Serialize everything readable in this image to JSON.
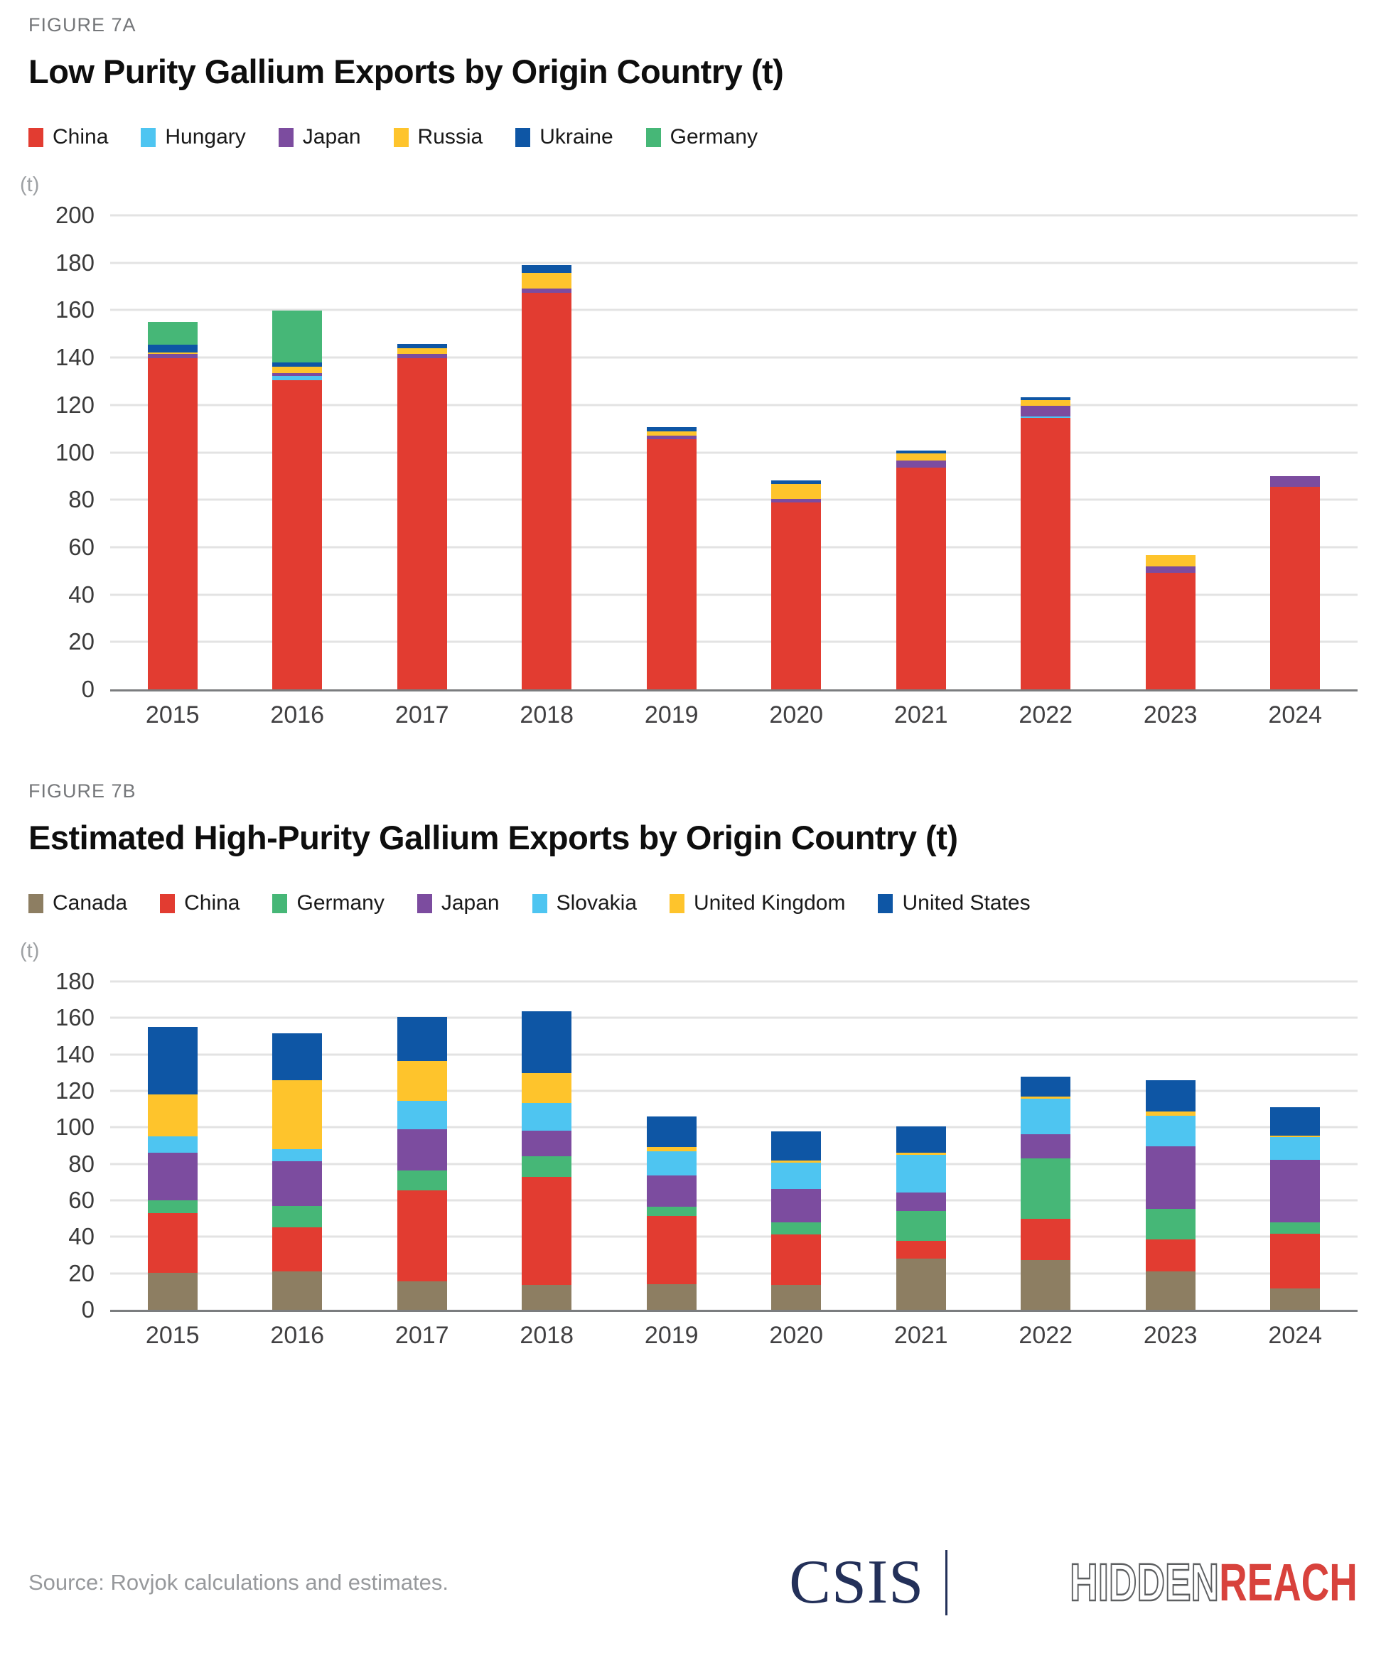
{
  "chart_data": [
    {
      "type": "bar",
      "stacked": true,
      "figure_label": "FIGURE 7A",
      "title": "Low Purity Gallium Exports by Origin Country (t)",
      "unit": "(t)",
      "grid": true,
      "legend_position": "top",
      "ylim": [
        0,
        200
      ],
      "ytick": 20,
      "categories": [
        "2015",
        "2016",
        "2017",
        "2018",
        "2019",
        "2020",
        "2021",
        "2022",
        "2023",
        "2024"
      ],
      "series": [
        {
          "name": "China",
          "color": "#e23c31",
          "values": [
            139,
            130,
            139,
            166.5,
            105,
            78.5,
            93,
            114,
            49,
            85
          ]
        },
        {
          "name": "Hungary",
          "color": "#4ec5f1",
          "values": [
            0,
            1.5,
            0,
            0,
            0,
            0,
            0,
            0.7,
            0,
            0
          ]
        },
        {
          "name": "Japan",
          "color": "#7c4c9f",
          "values": [
            1.8,
            1.2,
            2,
            1.8,
            1.5,
            1.5,
            3,
            4.5,
            2.5,
            4.5
          ]
        },
        {
          "name": "Russia",
          "color": "#fec42c",
          "values": [
            0.6,
            2.7,
            2.4,
            6.5,
            1.8,
            6.3,
            3,
            2.4,
            5,
            0
          ]
        },
        {
          "name": "Ukraine",
          "color": "#0e56a5",
          "values": [
            3.5,
            1.8,
            1.6,
            3.5,
            1.8,
            1.5,
            1.2,
            1.2,
            0,
            0
          ]
        },
        {
          "name": "Germany",
          "color": "#46b777",
          "values": [
            9.4,
            22,
            0,
            0,
            0,
            0,
            0,
            0,
            0,
            0
          ]
        }
      ]
    },
    {
      "type": "bar",
      "stacked": true,
      "figure_label": "FIGURE 7B",
      "title": "Estimated High-Purity Gallium Exports by Origin Country (t)",
      "unit": "(t)",
      "grid": true,
      "legend_position": "top",
      "ylim": [
        0,
        180
      ],
      "ytick": 20,
      "categories": [
        "2015",
        "2016",
        "2017",
        "2018",
        "2019",
        "2020",
        "2021",
        "2022",
        "2023",
        "2024"
      ],
      "series": [
        {
          "name": "Canada",
          "color": "#8d7e62",
          "values": [
            20,
            21,
            15.5,
            13.5,
            14,
            13.5,
            28,
            27,
            21,
            11.5
          ]
        },
        {
          "name": "China",
          "color": "#e23c31",
          "values": [
            32.5,
            24,
            49.5,
            59,
            37,
            27.5,
            9.5,
            22.5,
            17.5,
            30
          ]
        },
        {
          "name": "Germany",
          "color": "#46b777",
          "values": [
            7,
            11.5,
            11,
            11,
            5,
            6.5,
            16.5,
            33,
            16.5,
            6
          ]
        },
        {
          "name": "Japan",
          "color": "#7c4c9f",
          "values": [
            26,
            24.5,
            22.5,
            14,
            17,
            18.5,
            10,
            13,
            34,
            34
          ]
        },
        {
          "name": "Slovakia",
          "color": "#4ec5f1",
          "values": [
            9,
            6.5,
            15.5,
            15,
            13.5,
            14,
            20.5,
            19.5,
            16.5,
            12.5
          ]
        },
        {
          "name": "United Kingdom",
          "color": "#fec42c",
          "values": [
            23,
            37.5,
            21.5,
            16.5,
            2,
            1.5,
            1,
            1,
            2.5,
            0.7
          ]
        },
        {
          "name": "United States",
          "color": "#0e56a5",
          "values": [
            36.5,
            25.5,
            24,
            33.5,
            17,
            15.5,
            14.5,
            11,
            17,
            15.5
          ]
        }
      ]
    }
  ],
  "footer": {
    "source": "Source: Rovjok calculations and estimates.",
    "logo_csis": "CSIS",
    "logo_hidden": "HIDDEN",
    "logo_reach": "REACH"
  }
}
